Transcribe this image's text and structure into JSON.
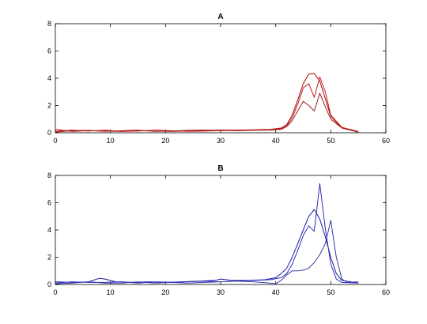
{
  "chart_data": [
    {
      "type": "line",
      "title": "A",
      "xlabel": "",
      "ylabel": "",
      "xlim": [
        0,
        60
      ],
      "ylim": [
        0,
        8
      ],
      "xticks": [
        0,
        10,
        20,
        30,
        40,
        50,
        60
      ],
      "yticks": [
        0,
        2,
        4,
        6,
        8
      ],
      "grid": false,
      "series": [
        {
          "color": "#b00000",
          "x": [
            0,
            3,
            6,
            9,
            12,
            15,
            18,
            21,
            24,
            27,
            30,
            33,
            36,
            39,
            41,
            42,
            43,
            44,
            45,
            46,
            47,
            48,
            49,
            50,
            52,
            55
          ],
          "y": [
            0.25,
            0.1,
            0.15,
            0.12,
            0.1,
            0.15,
            0.12,
            0.1,
            0.12,
            0.15,
            0.2,
            0.2,
            0.22,
            0.25,
            0.35,
            0.6,
            1.3,
            2.4,
            3.6,
            4.3,
            4.35,
            3.8,
            2.5,
            1.2,
            0.35,
            0.05
          ]
        },
        {
          "color": "#cc1a1a",
          "x": [
            0,
            3,
            6,
            9,
            12,
            15,
            18,
            21,
            24,
            27,
            30,
            33,
            36,
            39,
            41,
            42,
            43,
            44,
            45,
            46,
            47,
            48,
            49,
            50,
            52,
            55
          ],
          "y": [
            0.1,
            0.2,
            0.12,
            0.2,
            0.1,
            0.12,
            0.2,
            0.15,
            0.1,
            0.12,
            0.15,
            0.18,
            0.2,
            0.22,
            0.3,
            0.5,
            1.1,
            2.1,
            3.3,
            3.6,
            2.6,
            4.1,
            3.0,
            1.3,
            0.4,
            0.1
          ]
        },
        {
          "color": "#9a2020",
          "x": [
            0,
            3,
            6,
            9,
            12,
            15,
            18,
            21,
            24,
            27,
            30,
            33,
            36,
            39,
            41,
            42,
            43,
            44,
            45,
            46,
            47,
            48,
            49,
            50,
            52,
            55
          ],
          "y": [
            0.05,
            0.15,
            0.18,
            0.1,
            0.15,
            0.2,
            0.1,
            0.12,
            0.18,
            0.2,
            0.18,
            0.15,
            0.18,
            0.2,
            0.25,
            0.45,
            0.9,
            1.6,
            2.3,
            2.0,
            1.6,
            2.9,
            1.9,
            1.0,
            0.35,
            0.05
          ]
        }
      ]
    },
    {
      "type": "line",
      "title": "B",
      "xlabel": "",
      "ylabel": "",
      "xlim": [
        0,
        60
      ],
      "ylim": [
        0,
        8
      ],
      "xticks": [
        0,
        10,
        20,
        30,
        40,
        50,
        60
      ],
      "yticks": [
        0,
        2,
        4,
        6,
        8
      ],
      "grid": false,
      "series": [
        {
          "color": "#1a1aa0",
          "x": [
            0,
            3,
            6,
            8,
            9,
            11,
            14,
            17,
            20,
            23,
            26,
            29,
            30,
            32,
            35,
            38,
            40,
            41,
            42,
            43,
            44,
            45,
            46,
            47,
            48,
            49,
            50,
            51,
            52,
            55
          ],
          "y": [
            0.2,
            0.15,
            0.2,
            0.45,
            0.4,
            0.2,
            0.15,
            0.2,
            0.15,
            0.2,
            0.25,
            0.3,
            0.4,
            0.3,
            0.3,
            0.35,
            0.5,
            0.8,
            1.2,
            2.0,
            3.0,
            4.0,
            5.0,
            5.5,
            4.8,
            3.5,
            2.0,
            0.8,
            0.3,
            0.1
          ]
        },
        {
          "color": "#2e2ec0",
          "x": [
            0,
            3,
            6,
            9,
            12,
            15,
            18,
            21,
            24,
            27,
            30,
            33,
            36,
            39,
            41,
            42,
            43,
            44,
            45,
            46,
            47,
            48,
            49,
            50,
            51,
            52,
            55
          ],
          "y": [
            0.1,
            0.2,
            0.15,
            0.15,
            0.2,
            0.1,
            0.2,
            0.15,
            0.2,
            0.25,
            0.2,
            0.25,
            0.3,
            0.35,
            0.5,
            0.8,
            1.5,
            2.5,
            3.6,
            4.3,
            3.9,
            7.4,
            4.1,
            1.5,
            0.4,
            0.15,
            0.1
          ]
        },
        {
          "color": "#3a3aa8",
          "x": [
            0,
            3,
            6,
            9,
            12,
            15,
            18,
            21,
            24,
            27,
            30,
            33,
            36,
            39,
            40,
            41,
            42,
            43,
            44,
            45,
            46,
            47,
            48,
            49,
            50,
            51,
            52,
            53,
            55
          ],
          "y": [
            0.05,
            0.1,
            0.2,
            0.1,
            0.1,
            0.2,
            0.1,
            0.15,
            0.1,
            0.15,
            0.2,
            0.25,
            0.2,
            0.1,
            0.05,
            0.3,
            0.7,
            1.0,
            1.0,
            1.05,
            1.2,
            1.6,
            2.2,
            3.0,
            4.7,
            2.0,
            0.4,
            0.15,
            0.2
          ]
        }
      ]
    }
  ]
}
